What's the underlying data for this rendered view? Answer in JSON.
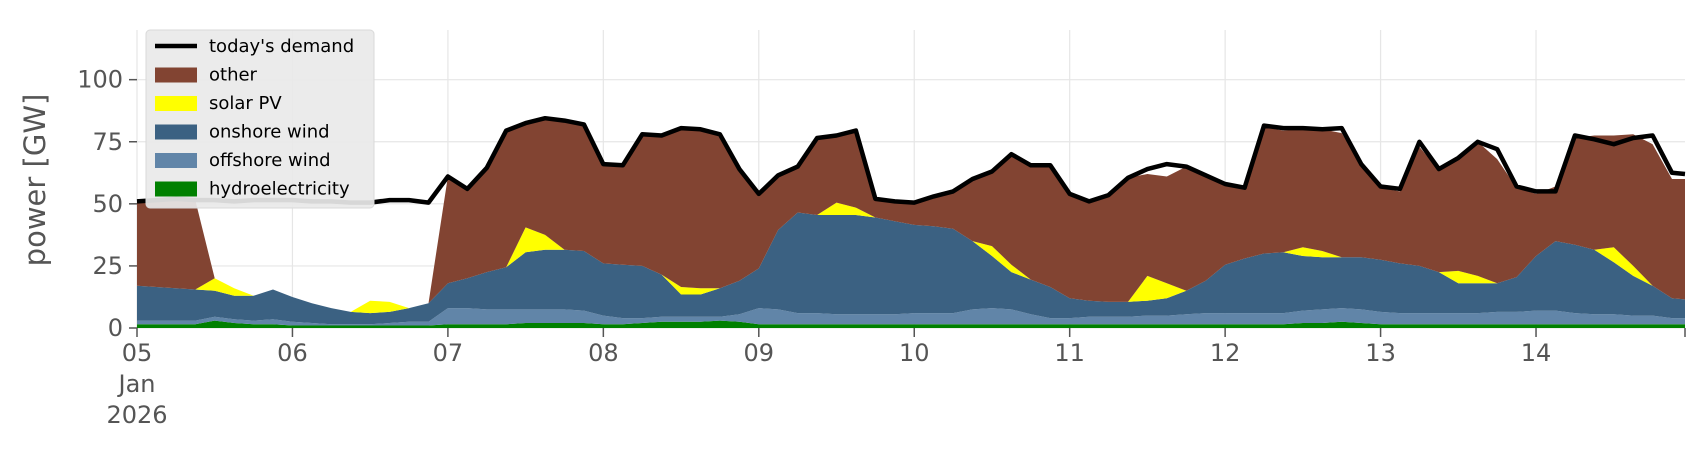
{
  "chart_data": {
    "type": "area",
    "xlabel": "",
    "ylabel": "power [GW]",
    "ylim": [
      0,
      120
    ],
    "xlim": [
      "2026-01-05 00:00",
      "2026-01-14 23:00"
    ],
    "yticks": [
      0,
      25,
      50,
      75,
      100
    ],
    "xticks": [
      {
        "date": "2026-01-05",
        "label": "05",
        "sublabel1": "Jan",
        "sublabel2": "2026"
      },
      {
        "date": "2026-01-06",
        "label": "06"
      },
      {
        "date": "2026-01-07",
        "label": "07"
      },
      {
        "date": "2026-01-08",
        "label": "08"
      },
      {
        "date": "2026-01-09",
        "label": "09"
      },
      {
        "date": "2026-01-10",
        "label": "10"
      },
      {
        "date": "2026-01-11",
        "label": "11"
      },
      {
        "date": "2026-01-12",
        "label": "12"
      },
      {
        "date": "2026-01-13",
        "label": "13"
      },
      {
        "date": "2026-01-14",
        "label": "14"
      }
    ],
    "grid": true,
    "background": "#ffffff",
    "legend_position": "upper-left",
    "x": [
      "2026-01-05 00:00",
      "2026-01-05 03:00",
      "2026-01-05 06:00",
      "2026-01-05 09:00",
      "2026-01-05 12:00",
      "2026-01-05 15:00",
      "2026-01-05 18:00",
      "2026-01-05 21:00",
      "2026-01-06 00:00",
      "2026-01-06 03:00",
      "2026-01-06 06:00",
      "2026-01-06 09:00",
      "2026-01-06 12:00",
      "2026-01-06 15:00",
      "2026-01-06 18:00",
      "2026-01-06 21:00",
      "2026-01-07 00:00",
      "2026-01-07 03:00",
      "2026-01-07 06:00",
      "2026-01-07 09:00",
      "2026-01-07 12:00",
      "2026-01-07 15:00",
      "2026-01-07 18:00",
      "2026-01-07 21:00",
      "2026-01-08 00:00",
      "2026-01-08 03:00",
      "2026-01-08 06:00",
      "2026-01-08 09:00",
      "2026-01-08 12:00",
      "2026-01-08 15:00",
      "2026-01-08 18:00",
      "2026-01-08 21:00",
      "2026-01-09 00:00",
      "2026-01-09 03:00",
      "2026-01-09 06:00",
      "2026-01-09 09:00",
      "2026-01-09 12:00",
      "2026-01-09 15:00",
      "2026-01-09 18:00",
      "2026-01-09 21:00",
      "2026-01-10 00:00",
      "2026-01-10 03:00",
      "2026-01-10 06:00",
      "2026-01-10 09:00",
      "2026-01-10 12:00",
      "2026-01-10 15:00",
      "2026-01-10 18:00",
      "2026-01-10 21:00",
      "2026-01-11 00:00",
      "2026-01-11 03:00",
      "2026-01-11 06:00",
      "2026-01-11 09:00",
      "2026-01-11 12:00",
      "2026-01-11 15:00",
      "2026-01-11 18:00",
      "2026-01-11 21:00",
      "2026-01-12 00:00",
      "2026-01-12 03:00",
      "2026-01-12 06:00",
      "2026-01-12 09:00",
      "2026-01-12 12:00",
      "2026-01-12 15:00",
      "2026-01-12 18:00",
      "2026-01-12 21:00",
      "2026-01-13 00:00",
      "2026-01-13 03:00",
      "2026-01-13 06:00",
      "2026-01-13 09:00",
      "2026-01-13 12:00",
      "2026-01-13 15:00",
      "2026-01-13 18:00",
      "2026-01-13 21:00",
      "2026-01-14 00:00",
      "2026-01-14 03:00",
      "2026-01-14 06:00",
      "2026-01-14 09:00",
      "2026-01-14 12:00",
      "2026-01-14 15:00",
      "2026-01-14 18:00",
      "2026-01-14 21:00",
      "2026-01-14 23:00"
    ],
    "series": [
      {
        "name": "hydroelectricity",
        "color": "#008000",
        "values": [
          1.5,
          1.5,
          1.5,
          1.5,
          3.0,
          2.0,
          1.5,
          1.5,
          1.0,
          1.0,
          1.0,
          1.0,
          1.0,
          1.0,
          1.0,
          1.0,
          1.5,
          1.5,
          1.5,
          1.5,
          2.0,
          2.0,
          2.0,
          2.0,
          1.5,
          1.5,
          2.0,
          2.5,
          2.5,
          2.5,
          3.0,
          2.5,
          1.5,
          1.5,
          1.5,
          1.5,
          1.5,
          1.5,
          1.5,
          1.5,
          1.5,
          1.5,
          1.5,
          1.5,
          1.5,
          1.5,
          1.5,
          1.5,
          1.5,
          1.5,
          1.5,
          1.5,
          1.5,
          1.5,
          1.5,
          1.5,
          1.5,
          1.5,
          1.5,
          1.5,
          2.0,
          2.0,
          2.5,
          2.0,
          1.5,
          1.5,
          1.5,
          1.5,
          1.5,
          1.5,
          1.5,
          1.5,
          1.5,
          1.5,
          1.5,
          1.5,
          1.5,
          1.5,
          1.5,
          1.5,
          1.5
        ]
      },
      {
        "name": "offshore wind",
        "color": "#6185a8",
        "values": [
          1.5,
          1.5,
          1.5,
          1.5,
          1.5,
          1.5,
          1.5,
          2.0,
          1.5,
          1.0,
          0.5,
          0.5,
          0.5,
          1.0,
          1.5,
          1.5,
          6.5,
          6.5,
          6.0,
          6.0,
          5.5,
          5.5,
          5.5,
          5.0,
          3.5,
          2.5,
          2.0,
          2.0,
          2.0,
          2.0,
          1.5,
          3.0,
          6.5,
          6.0,
          4.5,
          4.5,
          4.0,
          4.0,
          4.0,
          4.0,
          4.5,
          4.5,
          4.5,
          6.0,
          6.5,
          6.0,
          4.0,
          2.5,
          2.5,
          3.0,
          3.0,
          3.0,
          3.5,
          3.5,
          4.0,
          4.5,
          4.5,
          4.5,
          4.5,
          4.5,
          5.0,
          5.5,
          5.5,
          5.5,
          5.0,
          4.5,
          4.5,
          4.5,
          4.5,
          4.5,
          5.0,
          5.0,
          5.5,
          5.5,
          4.5,
          4.0,
          4.0,
          3.5,
          3.5,
          2.5,
          2.5
        ]
      },
      {
        "name": "onshore wind",
        "color": "#3b6182",
        "values": [
          14.0,
          13.5,
          13.0,
          12.5,
          10.5,
          9.5,
          10.0,
          12.0,
          10.0,
          8.0,
          6.5,
          5.0,
          4.5,
          4.5,
          5.5,
          7.5,
          10.0,
          12.0,
          15.0,
          17.0,
          23.0,
          24.0,
          24.0,
          24.0,
          21.0,
          21.5,
          21.0,
          17.0,
          9.0,
          9.0,
          11.5,
          13.5,
          16.0,
          32.0,
          40.5,
          39.5,
          40.0,
          40.0,
          39.0,
          37.5,
          35.5,
          35.0,
          34.0,
          27.5,
          21.0,
          15.0,
          14.0,
          12.5,
          8.0,
          6.5,
          6.0,
          6.0,
          6.0,
          7.0,
          9.5,
          13.0,
          19.5,
          22.0,
          24.0,
          24.5,
          22.0,
          21.0,
          20.5,
          21.0,
          21.0,
          20.0,
          19.0,
          16.5,
          12.0,
          12.0,
          11.5,
          14.0,
          22.0,
          28.0,
          27.5,
          26.0,
          21.0,
          16.0,
          12.0,
          8.0,
          7.5
        ]
      },
      {
        "name": "solar PV",
        "color": "#ffff00",
        "values": [
          0,
          0,
          0,
          0,
          5.0,
          3.0,
          0,
          0,
          0,
          0,
          0,
          0,
          5.0,
          4.0,
          0,
          0,
          0,
          0,
          0,
          0,
          10.0,
          6.0,
          0,
          0,
          0,
          0,
          0,
          0,
          3.0,
          2.5,
          0,
          0,
          0,
          0,
          0,
          0,
          5.0,
          3.0,
          0,
          0,
          0,
          0,
          0,
          0,
          4.0,
          3.0,
          0,
          0,
          0,
          0,
          0,
          0,
          10.0,
          6.0,
          0,
          0,
          0,
          0,
          0,
          0,
          3.5,
          2.5,
          0,
          0,
          0,
          0,
          0,
          0,
          5.0,
          3.0,
          0,
          0,
          0,
          0,
          0,
          0,
          6.0,
          4.0,
          0,
          0,
          0
        ]
      },
      {
        "name": "other",
        "color": "#824432",
        "values": [
          34.0,
          35.0,
          36.0,
          36.0,
          0,
          0,
          0,
          0,
          0,
          0,
          0,
          0,
          0,
          0,
          0,
          0,
          43.0,
          36.0,
          42.0,
          55.0,
          42.0,
          47.0,
          52.0,
          51.0,
          40.0,
          40.0,
          53.0,
          56.0,
          64.0,
          64.0,
          62.0,
          45.0,
          30.0,
          22.0,
          18.0,
          31.0,
          27.0,
          31.0,
          7.0,
          8.0,
          9.0,
          12.0,
          15.0,
          25.0,
          30.0,
          45.0,
          46.0,
          49.0,
          42.0,
          40.0,
          43.0,
          50.0,
          41.0,
          43.0,
          50.0,
          42.0,
          32.0,
          28.0,
          51.0,
          49.0,
          48.0,
          49.0,
          50.0,
          37.0,
          29.0,
          29.0,
          48.0,
          41.0,
          45.0,
          54.0,
          50.0,
          36.0,
          25.0,
          22.0,
          43.0,
          46.0,
          45.0,
          53.0,
          57.0,
          48.0,
          48.5
        ]
      }
    ],
    "line_series": {
      "name": "today's demand",
      "color": "#000000",
      "values": [
        51.0,
        51.5,
        52.0,
        51.5,
        51.5,
        51.0,
        51.5,
        51.5,
        51.5,
        51.0,
        51.0,
        50.5,
        50.5,
        51.5,
        51.5,
        50.5,
        61.0,
        56.0,
        64.5,
        79.5,
        82.5,
        84.5,
        83.5,
        82.0,
        66.0,
        65.5,
        78.0,
        77.5,
        80.5,
        80.0,
        78.0,
        64.0,
        54.0,
        61.5,
        65.0,
        76.5,
        77.5,
        79.5,
        52.0,
        51.0,
        50.5,
        53.0,
        55.0,
        60.0,
        63.0,
        70.0,
        65.5,
        65.5,
        54.0,
        51.0,
        53.5,
        60.5,
        64.0,
        66.0,
        65.0,
        61.5,
        58.0,
        56.5,
        81.5,
        80.5,
        80.5,
        80.0,
        80.5,
        66.0,
        57.0,
        56.0,
        75.0,
        64.0,
        68.5,
        75.0,
        72.0,
        57.0,
        55.0,
        55.0,
        77.5,
        76.0,
        74.0,
        76.5,
        77.5,
        62.5,
        62.0
      ]
    }
  },
  "legend": {
    "items": [
      {
        "label": "today's demand",
        "color": "#000000",
        "kind": "line"
      },
      {
        "label": "other",
        "color": "#824432",
        "kind": "patch"
      },
      {
        "label": "solar PV",
        "color": "#ffff00",
        "kind": "patch"
      },
      {
        "label": "onshore wind",
        "color": "#3b6182",
        "kind": "patch"
      },
      {
        "label": "offshore wind",
        "color": "#6185a8",
        "kind": "patch"
      },
      {
        "label": "hydroelectricity",
        "color": "#008000",
        "kind": "patch"
      }
    ]
  }
}
